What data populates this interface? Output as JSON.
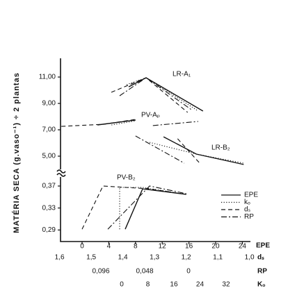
{
  "chart_data": {
    "type": "line",
    "ylabel": "MATÉRIA  SECA (g.vaso⁻¹) ÷ 2 plantas",
    "xlabel": "EPE",
    "xlim": [
      -3.23,
      25.21
    ],
    "xticks": [
      0,
      4,
      8,
      12,
      16,
      20,
      24
    ],
    "legend": [
      {
        "name": "EPE",
        "dash": "solid"
      },
      {
        "name": "kₒ",
        "dash": "dotted"
      },
      {
        "name": "dₛ",
        "dash": "dashed"
      },
      {
        "name": "RP",
        "dash": "dashdot"
      }
    ],
    "color": "#111111",
    "extra_axes": [
      {
        "label": "dₛ",
        "lim": [
          1.597,
          0.997
        ],
        "ticks": [
          {
            "value": 1.6,
            "label": "1,6"
          },
          {
            "value": 1.5,
            "label": "1,5"
          },
          {
            "value": 1.4,
            "label": "1,4"
          },
          {
            "value": 1.3,
            "label": "1,3"
          },
          {
            "value": 1.2,
            "label": "1,2"
          },
          {
            "value": 1.1,
            "label": "1,1"
          },
          {
            "value": 1.0,
            "label": "1,0"
          }
        ]
      },
      {
        "label": "RP",
        "lim": [
          0.1402,
          -0.0678
        ],
        "ticks": [
          {
            "value": 0.096,
            "label": "0,096"
          },
          {
            "value": 0.048,
            "label": "0,048"
          },
          0
        ]
      },
      {
        "label": "Kₒ",
        "lim": [
          -18.77,
          39.47
        ],
        "ticks": [
          0,
          8,
          16,
          24,
          32
        ]
      }
    ],
    "panels": [
      {
        "ylim": [
          4.2,
          12.4
        ],
        "yticks": [
          {
            "value": 5,
            "label": "5,00"
          },
          {
            "value": 7,
            "label": "7,00"
          },
          {
            "value": 9,
            "label": "9,00"
          },
          {
            "value": 11,
            "label": "11,00"
          }
        ],
        "groups": [
          {
            "label": "LR-A₁",
            "series": [
              {
                "x": [
                  6.98,
                  9.58,
                  18.1
                ],
                "values": [
                  10.26,
                  10.95,
                  8.42
                ]
              },
              {
                "x": [
                  6.67,
                  9.58,
                  17.4
                ],
                "values": [
                  10.42,
                  10.95,
                  8.42
                ]
              },
              {
                "x": [
                  4.38,
                  9.58,
                  15.8
                ],
                "values": [
                  9.84,
                  10.95,
                  8.32
                ]
              },
              {
                "x": [
                  5.63,
                  9.58,
                  16.35
                ],
                "values": [
                  9.58,
                  10.95,
                  8.53
                ]
              }
            ]
          },
          {
            "label": "PV-Aₚ",
            "series": [
              {
                "x": [
                  2.3,
                  8.02
                ],
                "values": [
                  7.37,
                  7.74
                ]
              },
              {
                "x": [
                  4.4,
                  8.0
                ],
                "values": [
                  7.37,
                  7.68
                ]
              },
              {
                "x": [
                  -3.1,
                  3.3,
                  8.0
                ],
                "values": [
                  7.26,
                  7.42,
                  7.79
                ]
              },
              {
                "x": [
                  10.6,
                  17.4
                ],
                "values": [
                  7.32,
                  7.63
                ]
              }
            ]
          },
          {
            "label": "LR-B₂",
            "series": [
              {
                "x": [
                  12.2,
                  17.1,
                  24.2
                ],
                "values": [
                  6.47,
                  5.16,
                  4.37
                ]
              },
              {
                "x": [
                  10.1,
                  17.1,
                  24.2
                ],
                "values": [
                  6.05,
                  5.16,
                  4.47
                ]
              },
              {
                "x": [
                  14.3,
                  17.7
                ],
                "values": [
                  6.32,
                  4.42
                ]
              },
              {
                "x": [
                  8.0,
                  15.3
                ],
                "values": [
                  6.53,
                  4.47
                ]
              }
            ]
          }
        ]
      },
      {
        "ylim": [
          0.269,
          0.385
        ],
        "yticks": [
          {
            "value": 0.29,
            "label": "0,29"
          },
          {
            "value": 0.33,
            "label": "0,33"
          },
          {
            "value": 0.37,
            "label": "0,37"
          }
        ],
        "groups": [
          {
            "label": "PV-B₂",
            "series": [
              {
                "x": [
                  6.46,
                  9.06,
                  15.6
                ],
                "values": [
                  0.2915,
                  0.3649,
                  0.3548
                ]
              },
              {
                "x": [
                  5.63,
                  5.63,
                  9.06,
                  15.6
                ],
                "values": [
                  0.2915,
                  0.3675,
                  0.3675,
                  0.3548
                ]
              },
              {
                "x": [
                  0,
                  3.125,
                  10.1,
                  15.6
                ],
                "values": [
                  0.2915,
                  0.37,
                  0.3649,
                  0.3548
                ]
              },
              {
                "x": [
                  3.85,
                  10.1,
                  15.6
                ],
                "values": [
                  0.2915,
                  0.37,
                  0.3561
                ]
              }
            ]
          }
        ]
      }
    ]
  }
}
